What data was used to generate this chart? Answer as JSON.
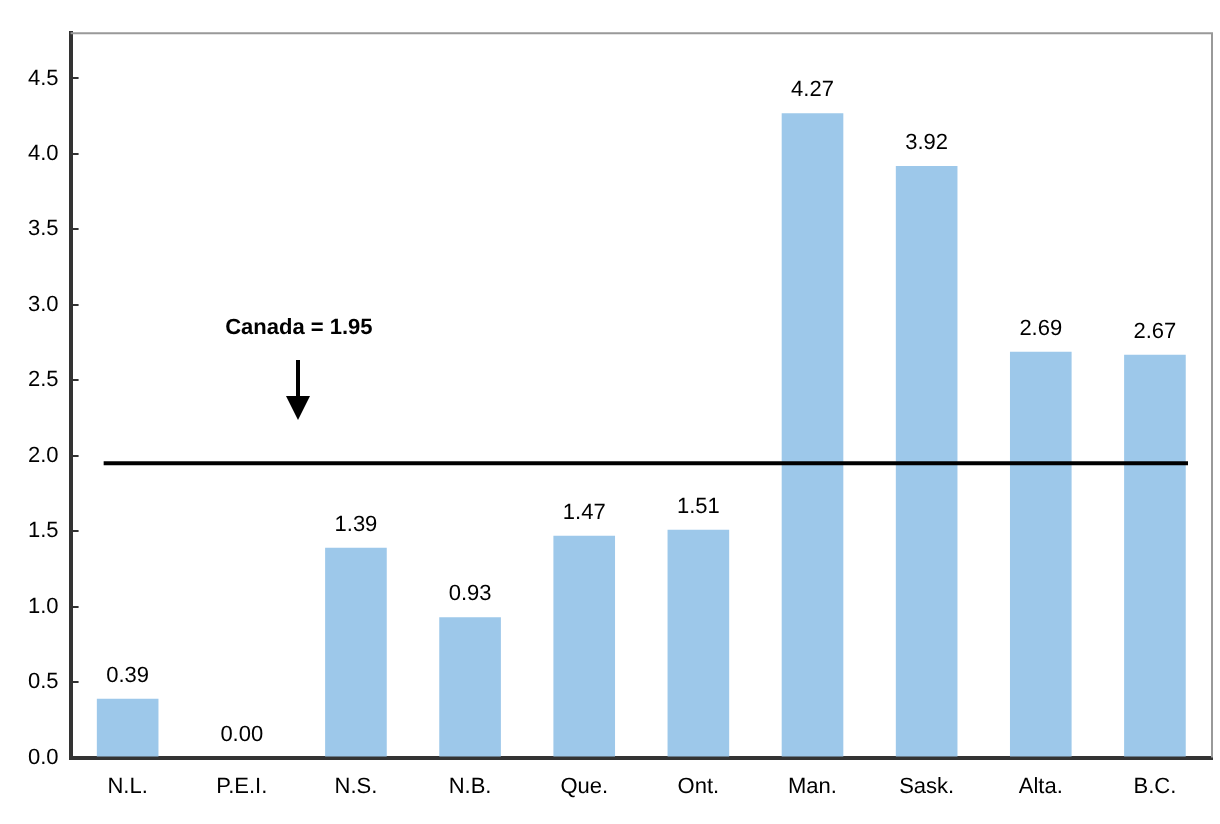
{
  "chart_data": {
    "type": "bar",
    "categories": [
      "N.L.",
      "P.E.I.",
      "N.S.",
      "N.B.",
      "Que.",
      "Ont.",
      "Man.",
      "Sask.",
      "Alta.",
      "B.C."
    ],
    "values": [
      0.39,
      0.0,
      1.39,
      0.93,
      1.47,
      1.51,
      4.27,
      3.92,
      2.69,
      2.67
    ],
    "color": "#9dc8ea",
    "ylim": [
      0,
      4.8
    ],
    "yticks": [
      {
        "value": 0,
        "label": "0.0"
      },
      {
        "value": 0.5,
        "label": "0.5"
      },
      {
        "value": 1,
        "label": "1.0"
      },
      {
        "value": 1.5,
        "label": "1.5"
      },
      {
        "value": 2,
        "label": "2.0"
      },
      {
        "value": 2.5,
        "label": "2.5"
      },
      {
        "value": 3,
        "label": "3.0"
      },
      {
        "value": 3.5,
        "label": "3.5"
      },
      {
        "value": 4,
        "label": "4.0"
      },
      {
        "value": 4.5,
        "label": "4.5"
      }
    ],
    "value_labels": [
      "0.39",
      "0.00",
      "1.39",
      "0.93",
      "1.47",
      "1.51",
      "4.27",
      "3.92",
      "2.69",
      "2.67"
    ],
    "ref_lines": [
      {
        "axis": "y",
        "value": 1.95,
        "label": "Canada = 1.95",
        "color": "#000000"
      }
    ],
    "grid": false,
    "legend": false
  }
}
